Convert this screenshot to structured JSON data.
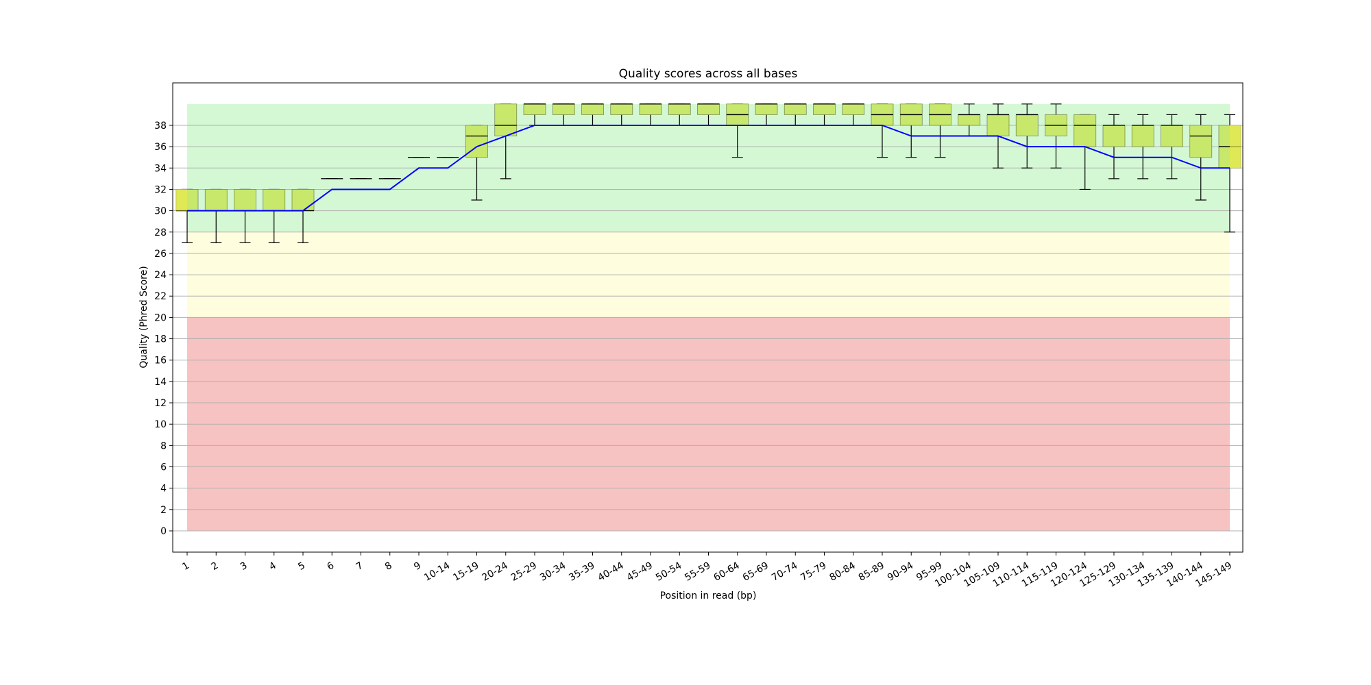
{
  "chart_data": {
    "type": "boxplot",
    "title": "Quality scores across all bases",
    "xlabel": "Position in read (bp)",
    "ylabel": "Quality (Phred Score)",
    "ylim": [
      -2,
      42
    ],
    "yticks": [
      0,
      2,
      4,
      6,
      8,
      10,
      12,
      14,
      16,
      18,
      20,
      22,
      24,
      26,
      28,
      30,
      32,
      34,
      36,
      38
    ],
    "grid": "horizontal",
    "background_bands": [
      {
        "from": 0,
        "to": 20,
        "color": "#f7bfbf"
      },
      {
        "from": 20,
        "to": 28,
        "color": "#fefedc"
      },
      {
        "from": 28,
        "to": 40,
        "color": "#d2f8d2"
      }
    ],
    "colors": {
      "box": "#c8e86c",
      "box_edge_highlight": "#e8e84c",
      "mean_line": "#0000ff",
      "whisker": "#000000",
      "grid": "#b0b0b0"
    },
    "categories": [
      "1",
      "2",
      "3",
      "4",
      "5",
      "6",
      "7",
      "8",
      "9",
      "10-14",
      "15-19",
      "20-24",
      "25-29",
      "30-34",
      "35-39",
      "40-44",
      "45-49",
      "50-54",
      "55-59",
      "60-64",
      "65-69",
      "70-74",
      "75-79",
      "80-84",
      "85-89",
      "90-94",
      "95-99",
      "100-104",
      "105-109",
      "110-114",
      "115-119",
      "120-124",
      "125-129",
      "130-134",
      "135-139",
      "140-144",
      "145-149"
    ],
    "boxes": [
      {
        "q1": 30,
        "median": 30,
        "q3": 32,
        "low": 27,
        "high": 32
      },
      {
        "q1": 30,
        "median": 30,
        "q3": 32,
        "low": 27,
        "high": 32
      },
      {
        "q1": 30,
        "median": 30,
        "q3": 32,
        "low": 27,
        "high": 32
      },
      {
        "q1": 30,
        "median": 30,
        "q3": 32,
        "low": 27,
        "high": 32
      },
      {
        "q1": 30,
        "median": 30,
        "q3": 32,
        "low": 27,
        "high": 32
      },
      {
        "q1": 33,
        "median": 33,
        "q3": 33,
        "low": 33,
        "high": 33
      },
      {
        "q1": 33,
        "median": 33,
        "q3": 33,
        "low": 33,
        "high": 33
      },
      {
        "q1": 33,
        "median": 33,
        "q3": 33,
        "low": 33,
        "high": 33
      },
      {
        "q1": 35,
        "median": 35,
        "q3": 35,
        "low": 35,
        "high": 35
      },
      {
        "q1": 35,
        "median": 35,
        "q3": 35,
        "low": 35,
        "high": 35
      },
      {
        "q1": 35,
        "median": 37,
        "q3": 38,
        "low": 31,
        "high": 38
      },
      {
        "q1": 37,
        "median": 38,
        "q3": 40,
        "low": 33,
        "high": 40
      },
      {
        "q1": 39,
        "median": 40,
        "q3": 40,
        "low": 38,
        "high": 40
      },
      {
        "q1": 39,
        "median": 40,
        "q3": 40,
        "low": 38,
        "high": 40
      },
      {
        "q1": 39,
        "median": 40,
        "q3": 40,
        "low": 38,
        "high": 40
      },
      {
        "q1": 39,
        "median": 40,
        "q3": 40,
        "low": 38,
        "high": 40
      },
      {
        "q1": 39,
        "median": 40,
        "q3": 40,
        "low": 38,
        "high": 40
      },
      {
        "q1": 39,
        "median": 40,
        "q3": 40,
        "low": 38,
        "high": 40
      },
      {
        "q1": 39,
        "median": 40,
        "q3": 40,
        "low": 38,
        "high": 40
      },
      {
        "q1": 38,
        "median": 39,
        "q3": 40,
        "low": 35,
        "high": 40
      },
      {
        "q1": 39,
        "median": 40,
        "q3": 40,
        "low": 38,
        "high": 40
      },
      {
        "q1": 39,
        "median": 40,
        "q3": 40,
        "low": 38,
        "high": 40
      },
      {
        "q1": 39,
        "median": 40,
        "q3": 40,
        "low": 38,
        "high": 40
      },
      {
        "q1": 39,
        "median": 40,
        "q3": 40,
        "low": 38,
        "high": 40
      },
      {
        "q1": 38,
        "median": 39,
        "q3": 40,
        "low": 35,
        "high": 40
      },
      {
        "q1": 38,
        "median": 39,
        "q3": 40,
        "low": 35,
        "high": 40
      },
      {
        "q1": 38,
        "median": 39,
        "q3": 40,
        "low": 35,
        "high": 40
      },
      {
        "q1": 38,
        "median": 39,
        "q3": 39,
        "low": 37,
        "high": 40
      },
      {
        "q1": 37,
        "median": 39,
        "q3": 39,
        "low": 34,
        "high": 40
      },
      {
        "q1": 37,
        "median": 39,
        "q3": 39,
        "low": 34,
        "high": 40
      },
      {
        "q1": 37,
        "median": 38,
        "q3": 39,
        "low": 34,
        "high": 40
      },
      {
        "q1": 36,
        "median": 38,
        "q3": 39,
        "low": 32,
        "high": 39
      },
      {
        "q1": 36,
        "median": 38,
        "q3": 38,
        "low": 33,
        "high": 39
      },
      {
        "q1": 36,
        "median": 38,
        "q3": 38,
        "low": 33,
        "high": 39
      },
      {
        "q1": 36,
        "median": 38,
        "q3": 38,
        "low": 33,
        "high": 39
      },
      {
        "q1": 35,
        "median": 37,
        "q3": 38,
        "low": 31,
        "high": 39
      },
      {
        "q1": 34,
        "median": 36,
        "q3": 38,
        "low": 28,
        "high": 39
      }
    ],
    "mean_line": [
      30,
      30,
      30,
      30,
      30,
      32,
      32,
      32,
      34,
      34,
      36,
      37,
      38,
      38,
      38,
      38,
      38,
      38,
      38,
      38,
      38,
      38,
      38,
      38,
      38,
      37,
      37,
      37,
      37,
      36,
      36,
      36,
      35,
      35,
      35,
      34,
      34
    ]
  }
}
